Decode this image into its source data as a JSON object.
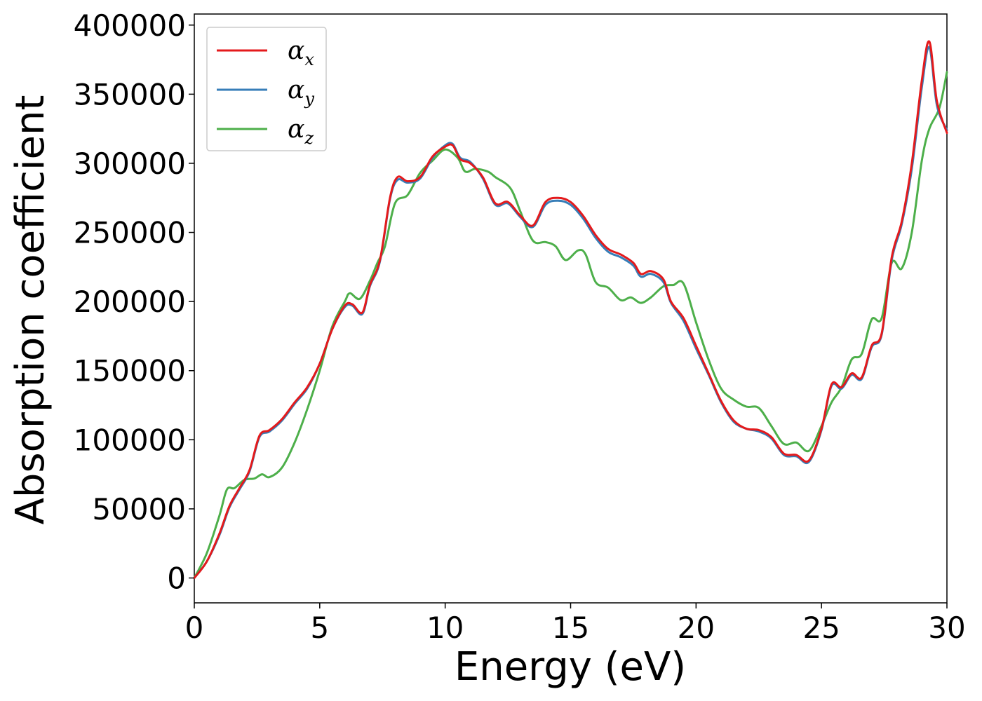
{
  "chart_data": {
    "type": "line",
    "xlabel": "Energy (eV)",
    "ylabel": "Absorption coefficient",
    "xlim": [
      0,
      30
    ],
    "ylim": [
      -18000,
      408000
    ],
    "x_ticks": [
      0,
      5,
      10,
      15,
      20,
      25,
      30
    ],
    "y_ticks": [
      0,
      50000,
      100000,
      150000,
      200000,
      250000,
      300000,
      350000,
      400000
    ],
    "x_tick_labels": [
      "0",
      "5",
      "10",
      "15",
      "20",
      "25",
      "30"
    ],
    "y_tick_labels": [
      "0",
      "50000",
      "100000",
      "150000",
      "200000",
      "250000",
      "300000",
      "350000",
      "400000"
    ],
    "grid": false,
    "legend_position": "top-left",
    "series": [
      {
        "name": "x",
        "legend_symbol": "α",
        "legend_subscript": "x",
        "color": "#e41a1c",
        "points": [
          [
            0,
            0
          ],
          [
            0.5,
            12000
          ],
          [
            1,
            32000
          ],
          [
            1.4,
            52000
          ],
          [
            1.8,
            65000
          ],
          [
            2.2,
            78000
          ],
          [
            2.6,
            103000
          ],
          [
            3,
            107000
          ],
          [
            3.5,
            115000
          ],
          [
            4,
            127000
          ],
          [
            4.5,
            138000
          ],
          [
            5,
            155000
          ],
          [
            5.5,
            180000
          ],
          [
            6,
            197000
          ],
          [
            6.3,
            198000
          ],
          [
            6.7,
            192000
          ],
          [
            7,
            212000
          ],
          [
            7.4,
            230000
          ],
          [
            7.8,
            275000
          ],
          [
            8.1,
            290000
          ],
          [
            8.5,
            287000
          ],
          [
            9,
            290000
          ],
          [
            9.5,
            305000
          ],
          [
            10,
            312000
          ],
          [
            10.3,
            313000
          ],
          [
            10.6,
            303000
          ],
          [
            11,
            300000
          ],
          [
            11.5,
            290000
          ],
          [
            12,
            271000
          ],
          [
            12.5,
            272000
          ],
          [
            13,
            262000
          ],
          [
            13.5,
            255000
          ],
          [
            14,
            272000
          ],
          [
            14.5,
            275000
          ],
          [
            15,
            272000
          ],
          [
            15.5,
            262000
          ],
          [
            16,
            248000
          ],
          [
            16.5,
            238000
          ],
          [
            17,
            234000
          ],
          [
            17.5,
            228000
          ],
          [
            17.8,
            220000
          ],
          [
            18.2,
            222000
          ],
          [
            18.7,
            216000
          ],
          [
            19,
            200000
          ],
          [
            19.5,
            188000
          ],
          [
            20,
            168000
          ],
          [
            20.5,
            148000
          ],
          [
            21,
            128000
          ],
          [
            21.5,
            114000
          ],
          [
            22,
            108000
          ],
          [
            22.5,
            107000
          ],
          [
            23,
            102000
          ],
          [
            23.5,
            90000
          ],
          [
            24,
            89000
          ],
          [
            24.5,
            85000
          ],
          [
            25,
            108000
          ],
          [
            25.4,
            140000
          ],
          [
            25.8,
            138000
          ],
          [
            26.2,
            148000
          ],
          [
            26.6,
            145000
          ],
          [
            27,
            168000
          ],
          [
            27.4,
            177000
          ],
          [
            27.8,
            232000
          ],
          [
            28.2,
            258000
          ],
          [
            28.6,
            300000
          ],
          [
            29,
            360000
          ],
          [
            29.3,
            388000
          ],
          [
            29.6,
            345000
          ],
          [
            30,
            322000
          ]
        ]
      },
      {
        "name": "y",
        "legend_symbol": "α",
        "legend_subscript": "y",
        "color": "#377eb8",
        "points": [
          [
            0,
            0
          ],
          [
            0.5,
            12000
          ],
          [
            1,
            31000
          ],
          [
            1.4,
            51000
          ],
          [
            1.8,
            64000
          ],
          [
            2.2,
            77000
          ],
          [
            2.6,
            102000
          ],
          [
            3,
            106000
          ],
          [
            3.5,
            114000
          ],
          [
            4,
            126000
          ],
          [
            4.5,
            137000
          ],
          [
            5,
            155000
          ],
          [
            5.5,
            180000
          ],
          [
            6,
            196000
          ],
          [
            6.3,
            197000
          ],
          [
            6.7,
            191000
          ],
          [
            7,
            211000
          ],
          [
            7.4,
            229000
          ],
          [
            7.8,
            274000
          ],
          [
            8.1,
            288000
          ],
          [
            8.5,
            286000
          ],
          [
            9,
            289000
          ],
          [
            9.5,
            304000
          ],
          [
            10,
            313000
          ],
          [
            10.3,
            314000
          ],
          [
            10.6,
            304000
          ],
          [
            11,
            301000
          ],
          [
            11.5,
            289000
          ],
          [
            12,
            270000
          ],
          [
            12.5,
            271000
          ],
          [
            13,
            261000
          ],
          [
            13.5,
            254000
          ],
          [
            14,
            270000
          ],
          [
            14.5,
            273000
          ],
          [
            15,
            270000
          ],
          [
            15.5,
            260000
          ],
          [
            16,
            246000
          ],
          [
            16.5,
            236000
          ],
          [
            17,
            232000
          ],
          [
            17.5,
            226000
          ],
          [
            17.8,
            218000
          ],
          [
            18.2,
            220000
          ],
          [
            18.7,
            214000
          ],
          [
            19,
            199000
          ],
          [
            19.5,
            186000
          ],
          [
            20,
            166000
          ],
          [
            20.5,
            147000
          ],
          [
            21,
            127000
          ],
          [
            21.5,
            113000
          ],
          [
            22,
            108000
          ],
          [
            22.5,
            106000
          ],
          [
            23,
            101000
          ],
          [
            23.5,
            89000
          ],
          [
            24,
            88000
          ],
          [
            24.5,
            84000
          ],
          [
            25,
            107000
          ],
          [
            25.4,
            139000
          ],
          [
            25.8,
            137000
          ],
          [
            26.2,
            147000
          ],
          [
            26.6,
            144000
          ],
          [
            27,
            167000
          ],
          [
            27.4,
            176000
          ],
          [
            27.8,
            230000
          ],
          [
            28.2,
            256000
          ],
          [
            28.6,
            296000
          ],
          [
            29,
            355000
          ],
          [
            29.3,
            384000
          ],
          [
            29.6,
            342000
          ],
          [
            30,
            324000
          ]
        ]
      },
      {
        "name": "z",
        "legend_symbol": "α",
        "legend_subscript": "z",
        "color": "#4daf4a",
        "points": [
          [
            0,
            0
          ],
          [
            0.5,
            18000
          ],
          [
            1,
            45000
          ],
          [
            1.3,
            64000
          ],
          [
            1.6,
            65000
          ],
          [
            2,
            71000
          ],
          [
            2.4,
            72000
          ],
          [
            2.7,
            75000
          ],
          [
            3,
            73000
          ],
          [
            3.5,
            80000
          ],
          [
            4,
            98000
          ],
          [
            4.5,
            122000
          ],
          [
            5,
            150000
          ],
          [
            5.5,
            182000
          ],
          [
            6,
            200000
          ],
          [
            6.2,
            206000
          ],
          [
            6.6,
            202000
          ],
          [
            7,
            215000
          ],
          [
            7.3,
            228000
          ],
          [
            7.6,
            240000
          ],
          [
            8,
            271000
          ],
          [
            8.5,
            277000
          ],
          [
            9,
            293000
          ],
          [
            9.5,
            302000
          ],
          [
            10,
            310000
          ],
          [
            10.5,
            304000
          ],
          [
            10.8,
            294000
          ],
          [
            11.2,
            296000
          ],
          [
            11.7,
            294000
          ],
          [
            12,
            290000
          ],
          [
            12.6,
            282000
          ],
          [
            13,
            265000
          ],
          [
            13.5,
            244000
          ],
          [
            14,
            243000
          ],
          [
            14.4,
            240000
          ],
          [
            14.8,
            230000
          ],
          [
            15.3,
            237000
          ],
          [
            15.6,
            234000
          ],
          [
            16,
            214000
          ],
          [
            16.5,
            210000
          ],
          [
            17,
            201000
          ],
          [
            17.4,
            203000
          ],
          [
            17.8,
            199000
          ],
          [
            18.2,
            203000
          ],
          [
            18.7,
            211000
          ],
          [
            19.1,
            212000
          ],
          [
            19.5,
            213000
          ],
          [
            20,
            185000
          ],
          [
            20.5,
            158000
          ],
          [
            21,
            137000
          ],
          [
            21.5,
            129000
          ],
          [
            22,
            124000
          ],
          [
            22.5,
            123000
          ],
          [
            23,
            110000
          ],
          [
            23.5,
            97000
          ],
          [
            24,
            98000
          ],
          [
            24.5,
            92000
          ],
          [
            25,
            110000
          ],
          [
            25.4,
            127000
          ],
          [
            25.8,
            138000
          ],
          [
            26.2,
            158000
          ],
          [
            26.6,
            162000
          ],
          [
            27,
            187000
          ],
          [
            27.4,
            188000
          ],
          [
            27.8,
            228000
          ],
          [
            28.2,
            224000
          ],
          [
            28.6,
            250000
          ],
          [
            29,
            302000
          ],
          [
            29.3,
            325000
          ],
          [
            29.7,
            340000
          ],
          [
            30,
            366000
          ]
        ]
      }
    ]
  }
}
